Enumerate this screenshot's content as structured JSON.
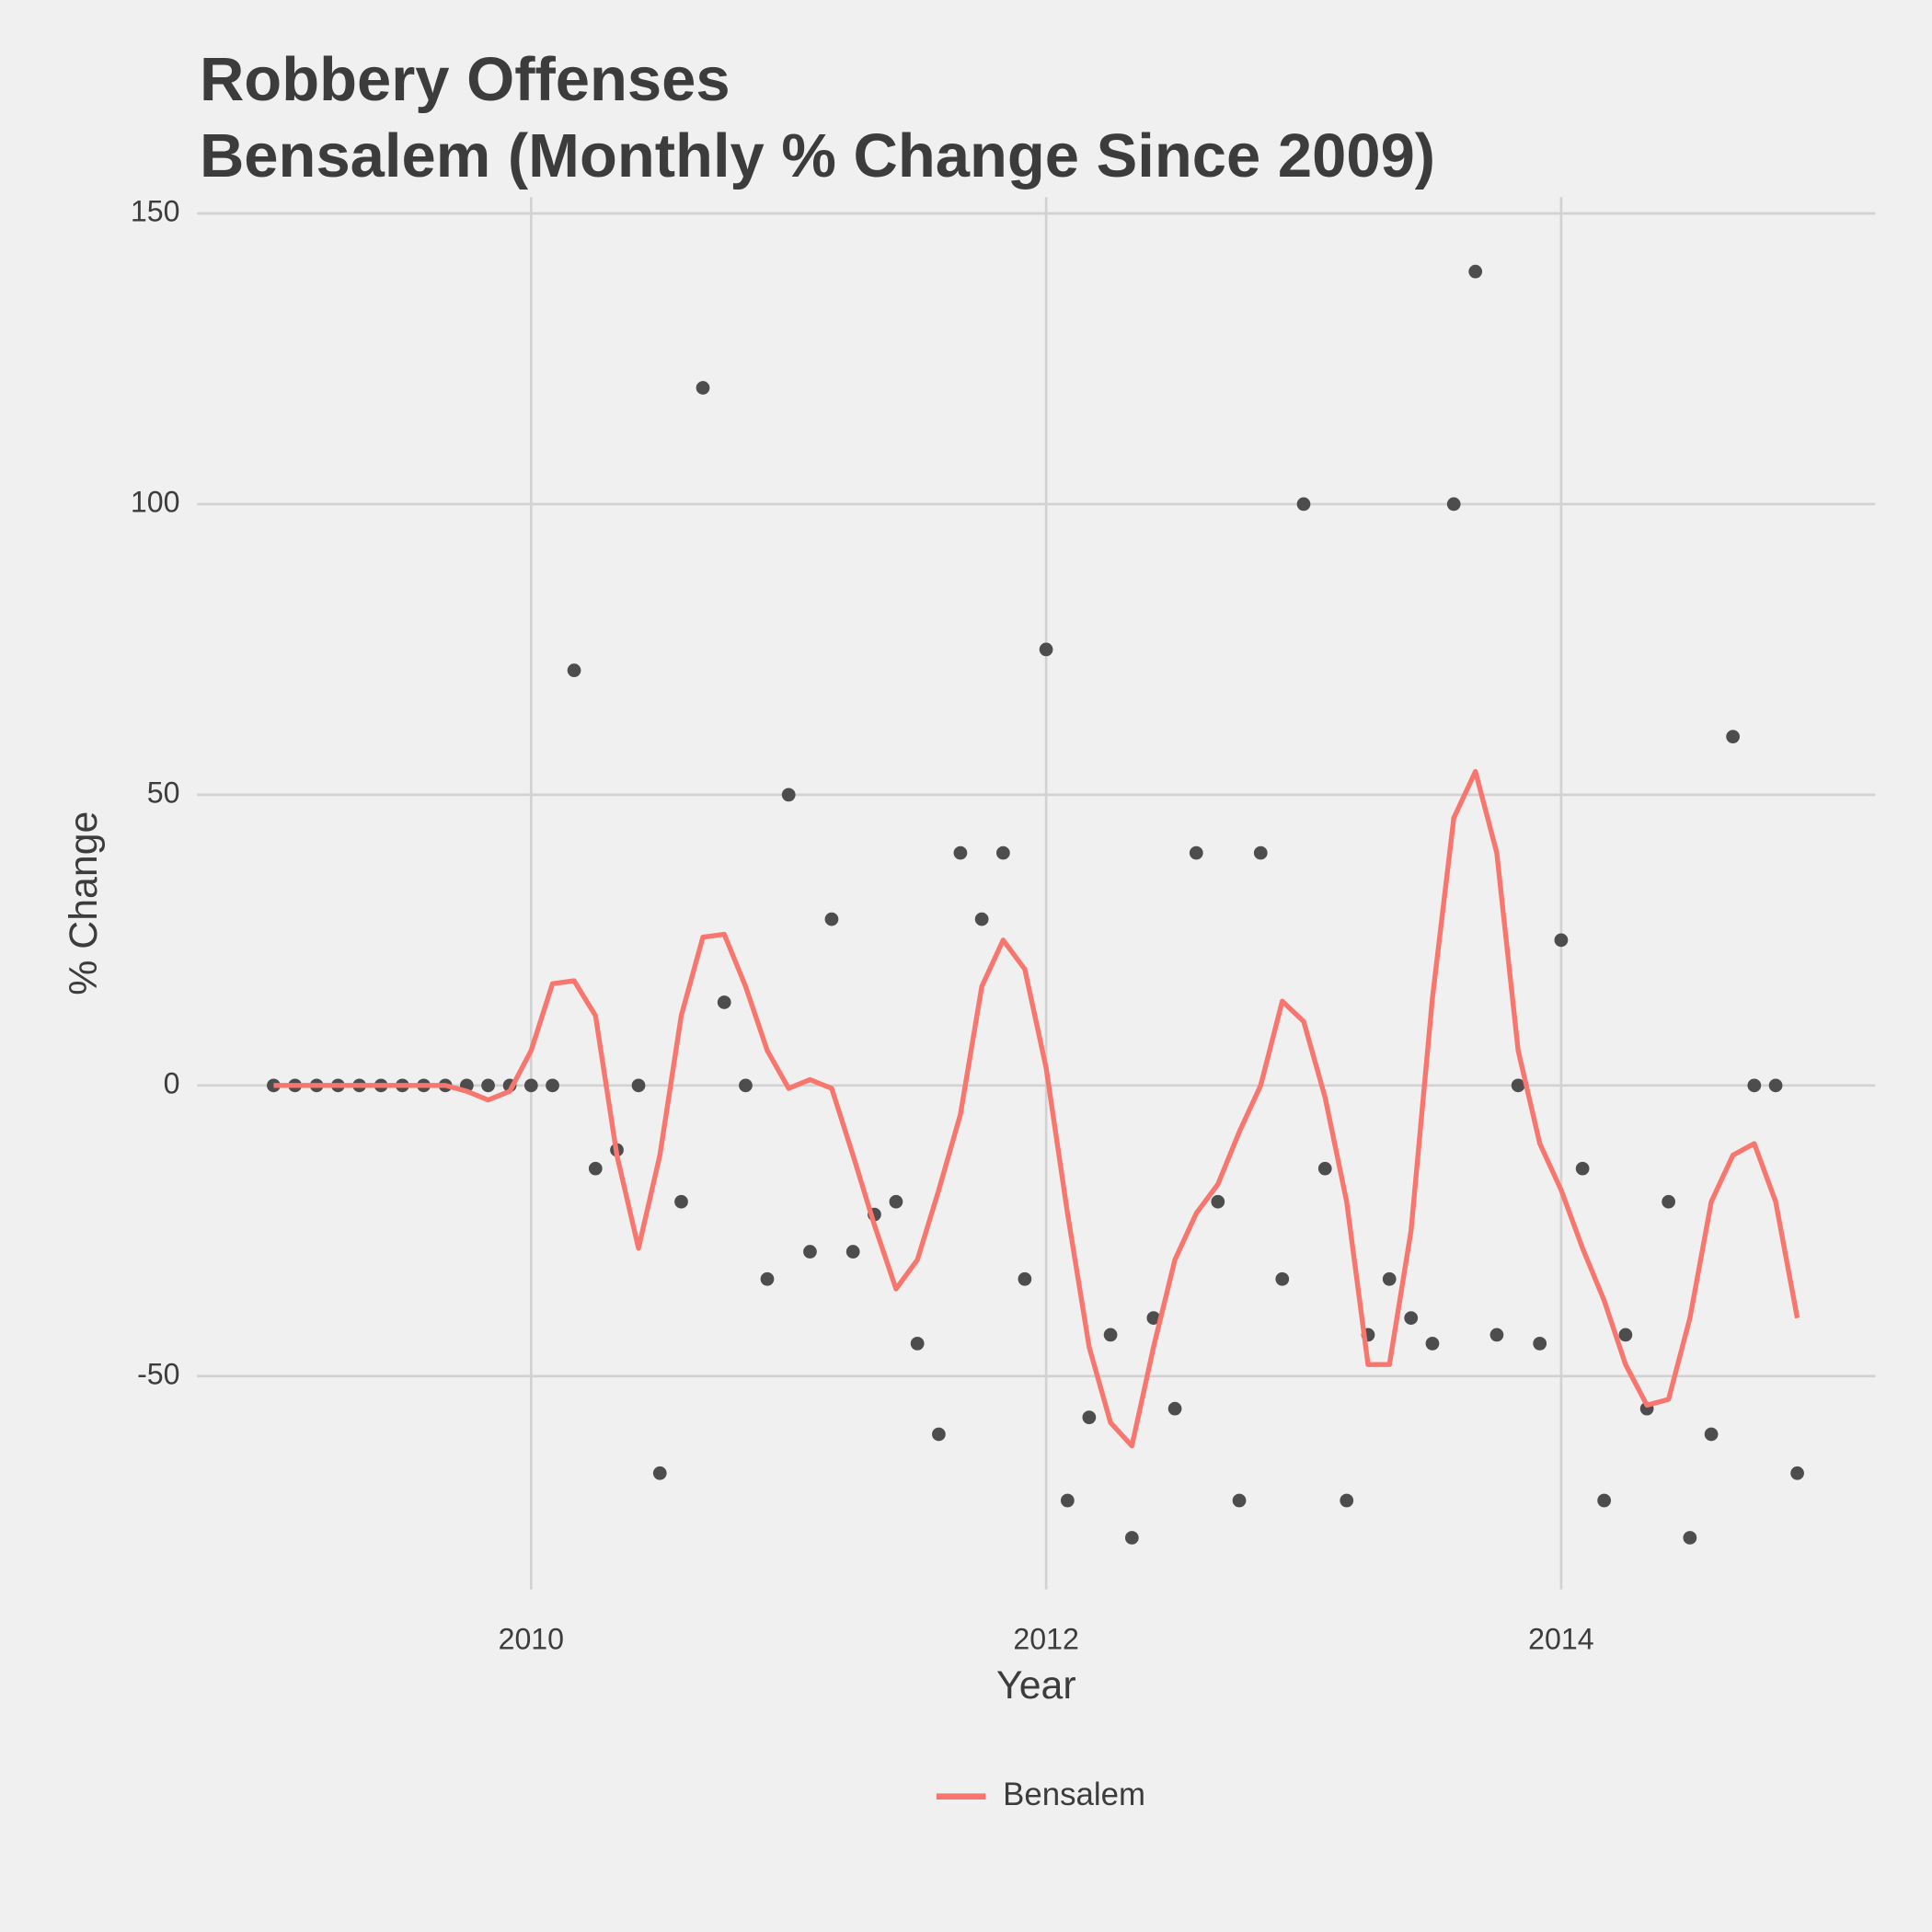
{
  "chart_data": {
    "type": "line",
    "title": "Robbery Offenses",
    "subtitle": "Bensalem (Monthly % Change Since 2009)",
    "x_label": "Year",
    "y_label": "% Change",
    "x": [
      2009,
      2009.083,
      2009.167,
      2009.25,
      2009.333,
      2009.417,
      2009.5,
      2009.583,
      2009.667,
      2009.75,
      2009.833,
      2009.917,
      2010,
      2010.083,
      2010.167,
      2010.25,
      2010.333,
      2010.417,
      2010.5,
      2010.583,
      2010.667,
      2010.75,
      2010.833,
      2010.917,
      2011,
      2011.083,
      2011.167,
      2011.25,
      2011.333,
      2011.417,
      2011.5,
      2011.583,
      2011.667,
      2011.75,
      2011.833,
      2011.917,
      2012,
      2012.083,
      2012.167,
      2012.25,
      2012.333,
      2012.417,
      2012.5,
      2012.583,
      2012.667,
      2012.75,
      2012.833,
      2012.917,
      2013,
      2013.083,
      2013.167,
      2013.25,
      2013.333,
      2013.417,
      2013.5,
      2013.583,
      2013.667,
      2013.75,
      2013.833,
      2013.917,
      2014,
      2014.083,
      2014.167,
      2014.25,
      2014.333,
      2014.417,
      2014.5,
      2014.583,
      2014.667,
      2014.75,
      2014.833,
      2014.917
    ],
    "points": {
      "color": "#4d4d4d",
      "values": [
        0,
        0,
        0,
        0,
        0,
        0,
        0,
        0,
        0,
        0,
        0,
        0,
        0,
        0,
        71.4,
        -14.3,
        -11.1,
        0,
        -66.7,
        -20,
        120,
        14.3,
        0,
        -33.3,
        50,
        -28.6,
        28.6,
        -28.6,
        -22.2,
        -20,
        -44.4,
        -60,
        40,
        28.6,
        40,
        -33.3,
        75,
        -71.4,
        -57.1,
        -42.9,
        -77.8,
        -40,
        -55.6,
        40,
        -20,
        -71.4,
        40,
        -33.3,
        100,
        -14.3,
        -71.4,
        -42.9,
        -33.3,
        -40,
        -44.4,
        100,
        140,
        -42.9,
        0,
        -44.4,
        25,
        -14.3,
        -71.4,
        -42.9,
        -55.6,
        -20,
        -77.8,
        -60,
        60,
        0,
        0,
        -66.7
      ]
    },
    "series": [
      {
        "name": "Bensalem",
        "color": "#f8766d",
        "values": [
          0,
          0,
          0,
          0,
          0,
          0,
          0,
          0,
          0,
          -1,
          -2.5,
          -1,
          6,
          17.5,
          18,
          12,
          -12,
          -28,
          -12,
          12,
          25.5,
          26,
          17,
          6,
          -0.5,
          1,
          -0.5,
          -12,
          -24,
          -35,
          -30,
          -18,
          -5,
          17,
          25,
          20,
          3,
          -22,
          -45,
          -58,
          -62,
          -45,
          -30,
          -22,
          -17,
          -8,
          0,
          14.5,
          11,
          -2,
          -20,
          -48,
          -48,
          -25,
          15,
          46,
          54,
          40,
          6,
          -10,
          -18,
          -28,
          -37,
          -48,
          -55,
          -54,
          -40,
          -20,
          -12,
          -10,
          -20,
          -40
        ]
      }
    ],
    "xlim": [
      2008.703,
      2015.22
    ],
    "xticks": [
      2010,
      2012,
      2014
    ],
    "ylim": [
      -86.7,
      152.8
    ],
    "yticks": [
      -50,
      0,
      50,
      100,
      150
    ],
    "grid": true,
    "legend": "bottom"
  }
}
